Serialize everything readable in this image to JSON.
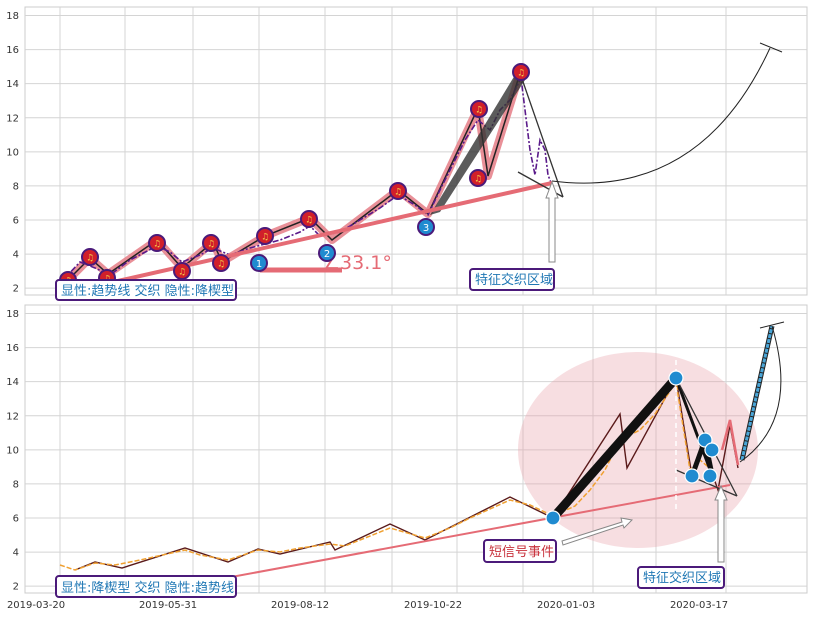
{
  "chart_data": [
    {
      "type": "line",
      "title": "",
      "ylim": [
        1.6,
        18.5
      ],
      "yticks": [
        2,
        4,
        6,
        8,
        10,
        12,
        14,
        16,
        18
      ],
      "grid": true,
      "series": [
        {
          "values": [
            {
              "x": 0,
              "y": 2.3
            },
            {
              "x": 14,
              "y": 3.6
            },
            {
              "x": 30,
              "y": 3.0
            },
            {
              "x": 50,
              "y": 3.8
            },
            {
              "x": 64,
              "y": 4.5
            },
            {
              "x": 80,
              "y": 3.6
            },
            {
              "x": 100,
              "y": 4.5
            },
            {
              "x": 116,
              "y": 4.0
            },
            {
              "x": 132,
              "y": 4.8
            },
            {
              "x": 140,
              "y": 4.3
            },
            {
              "x": 160,
              "y": 5.8
            },
            {
              "x": 176,
              "y": 4.8
            },
            {
              "x": 196,
              "y": 6.2
            },
            {
              "x": 214,
              "y": 7.5
            },
            {
              "x": 232,
              "y": 6.3
            },
            {
              "x": 244,
              "y": 9.0
            },
            {
              "x": 250,
              "y": 11.8
            },
            {
              "x": 256,
              "y": 9.5
            },
            {
              "x": 266,
              "y": 14.5
            },
            {
              "x": 272,
              "y": 10.0
            },
            {
              "x": 276,
              "y": 8.5
            },
            {
              "x": 280,
              "y": 10.5
            },
            {
              "x": 284,
              "y": 7.8
            }
          ]
        }
      ],
      "markers_red": [
        {
          "x": 4,
          "y": 2.3
        },
        {
          "x": 14,
          "y": 3.9
        },
        {
          "x": 24,
          "y": 2.4
        },
        {
          "x": 50,
          "y": 4.7
        },
        {
          "x": 64,
          "y": 3.0
        },
        {
          "x": 80,
          "y": 4.7
        },
        {
          "x": 84,
          "y": 3.5
        },
        {
          "x": 100,
          "y": 5.1
        },
        {
          "x": 124,
          "y": 6.1
        },
        {
          "x": 172,
          "y": 7.7
        },
        {
          "x": 224,
          "y": 12.5
        },
        {
          "x": 222,
          "y": 8.5
        },
        {
          "x": 244,
          "y": 14.6
        }
      ],
      "markers_blue": [
        {
          "x": 100,
          "y": 3.5,
          "label": "1"
        },
        {
          "x": 140,
          "y": 4.1,
          "label": "2"
        },
        {
          "x": 190,
          "y": 5.6,
          "label": "3"
        }
      ],
      "angle_label": "∠33.1°",
      "annotation": "特征交织区域",
      "caption": "显性:趋势线 交织 隐性:降楔型"
    },
    {
      "type": "line",
      "title": "",
      "ylim": [
        1.6,
        18.5
      ],
      "yticks": [
        2,
        4,
        6,
        8,
        10,
        12,
        14,
        16,
        18
      ],
      "xticks": [
        "2019-03-20",
        "2019-05-31",
        "2019-08-12",
        "2019-10-22",
        "2020-01-03",
        "2020-03-17"
      ],
      "grid": true,
      "series": [
        {
          "values": [
            {
              "x": 0,
              "y": 3.2
            },
            {
              "x": 14,
              "y": 3.5
            },
            {
              "x": 30,
              "y": 3.2
            },
            {
              "x": 50,
              "y": 3.8
            },
            {
              "x": 64,
              "y": 4.3
            },
            {
              "x": 80,
              "y": 3.6
            },
            {
              "x": 100,
              "y": 4.3
            },
            {
              "x": 116,
              "y": 4.0
            },
            {
              "x": 132,
              "y": 4.5
            },
            {
              "x": 140,
              "y": 4.3
            },
            {
              "x": 160,
              "y": 5.6
            },
            {
              "x": 176,
              "y": 4.9
            },
            {
              "x": 196,
              "y": 6.2
            },
            {
              "x": 214,
              "y": 7.0
            },
            {
              "x": 232,
              "y": 6.2
            },
            {
              "x": 244,
              "y": 8.4
            },
            {
              "x": 256,
              "y": 11.0
            },
            {
              "x": 266,
              "y": 14.0
            }
          ]
        }
      ],
      "markers_blue": [
        {
          "x": 232,
          "y": 6.1
        },
        {
          "x": 270,
          "y": 14.1
        },
        {
          "x": 285,
          "y": 8.5
        },
        {
          "x": 296,
          "y": 10.6
        },
        {
          "x": 300,
          "y": 10.0
        },
        {
          "x": 298,
          "y": 8.5
        }
      ],
      "annotation_short": "短信号事件",
      "annotation": "特征交织区域",
      "caption": "显性:降楔型 交织 隐性:趋势线"
    }
  ]
}
